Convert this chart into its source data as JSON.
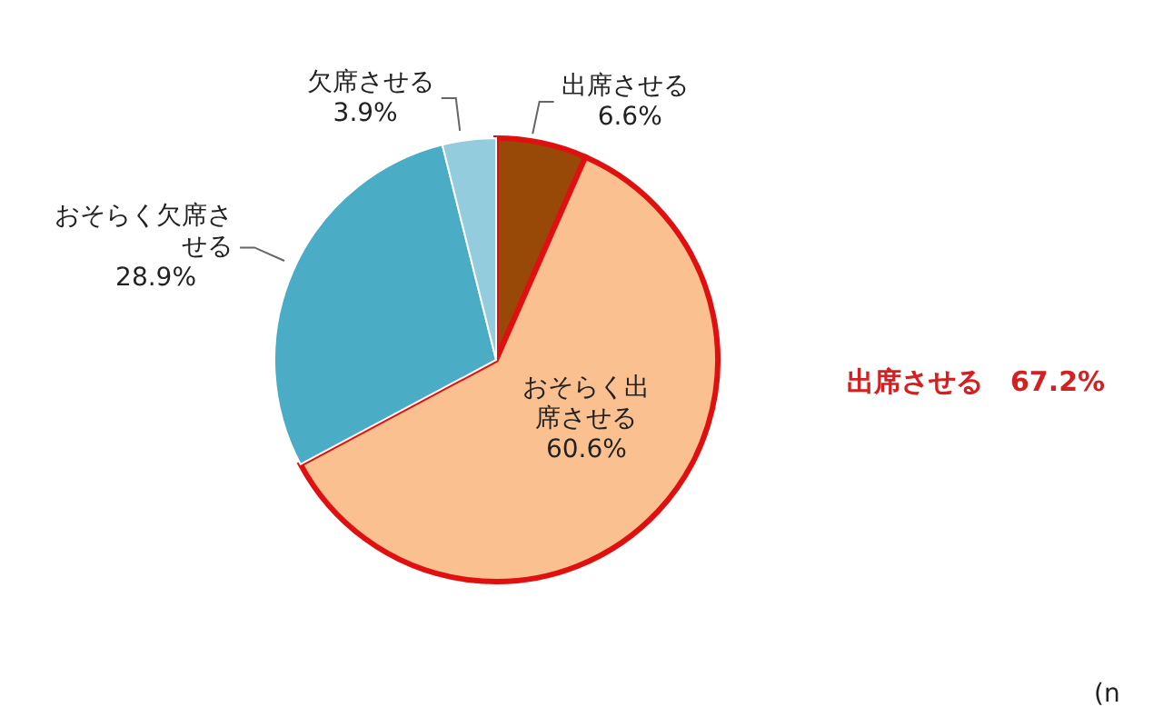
{
  "chart_data": {
    "type": "pie",
    "categories": [
      "出席させる",
      "おそらく出席させる",
      "おそらく欠席させる",
      "欠席させる"
    ],
    "values": [
      6.6,
      60.6,
      28.9,
      3.9
    ],
    "colors": [
      "#984807",
      "#fac090",
      "#4bacc6",
      "#93cddd"
    ],
    "value_labels": [
      "6.6%",
      "60.6%",
      "28.9%",
      "3.9%"
    ],
    "annotations": [
      "出席させる　67.2%",
      "(n"
    ]
  }
}
